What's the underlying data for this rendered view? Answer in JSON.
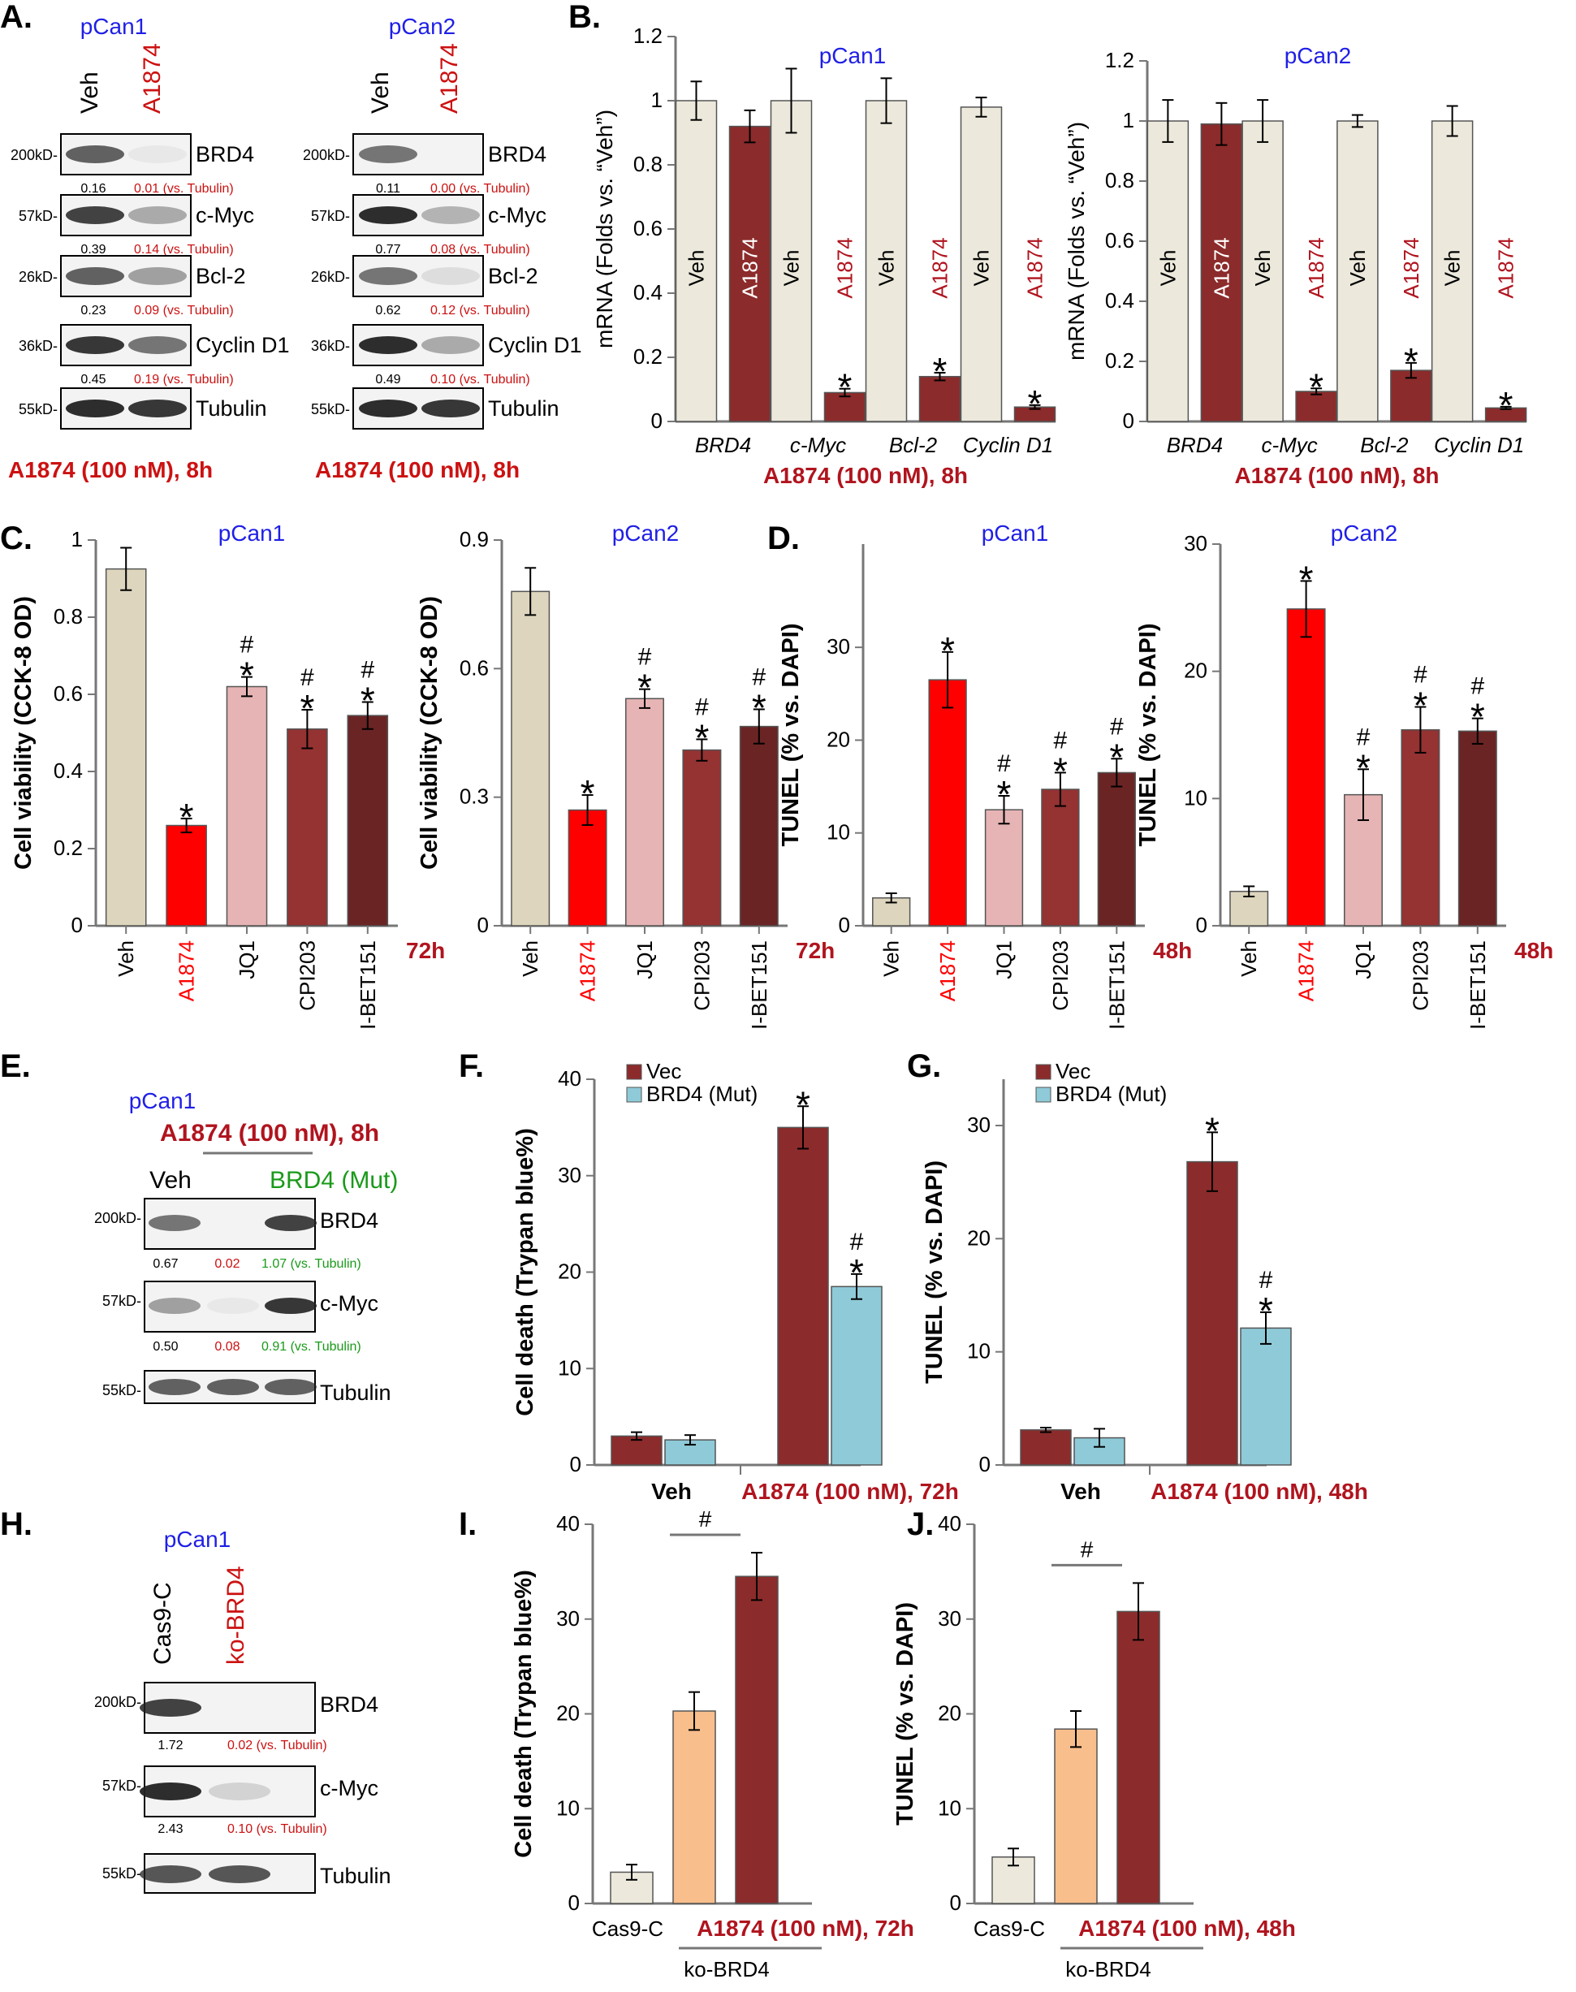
{
  "colors": {
    "blue": "#1f1fe6",
    "red": "#cc1111",
    "darkred": "#b0141e",
    "green": "#1a9a1a",
    "veh": "#ddd5bd",
    "pale": "#ece9dc",
    "bright": "#ff0000",
    "pink": "#e6b4b4",
    "brown": "#953232",
    "darkbrown": "#6b2424",
    "navy": "#8c2b2b",
    "lightblue": "#8fcad8",
    "peach": "#f8be8c"
  },
  "panels": {
    "A": {
      "letter": "A.",
      "blots": [
        {
          "title": "pCan1",
          "lanes": [
            "Veh",
            "A1874"
          ],
          "rows": [
            {
              "protein": "BRD4",
              "mw": "200kD-",
              "q": [
                "0.16",
                "0.01 (vs. Tubulin)"
              ]
            },
            {
              "protein": "c-Myc",
              "mw": "57kD-",
              "q": [
                "0.39",
                "0.14 (vs. Tubulin)"
              ]
            },
            {
              "protein": "Bcl-2",
              "mw": "26kD-",
              "q": [
                "0.23",
                "0.09 (vs. Tubulin)"
              ]
            },
            {
              "protein": "Cyclin D1",
              "mw": "36kD-",
              "q": [
                "0.45",
                "0.19 (vs. Tubulin)"
              ]
            },
            {
              "protein": "Tubulin",
              "mw": "55kD-",
              "q": []
            }
          ],
          "footer": "A1874 (100 nM), 8h"
        },
        {
          "title": "pCan2",
          "lanes": [
            "Veh",
            "A1874"
          ],
          "rows": [
            {
              "protein": "BRD4",
              "mw": "200kD-",
              "q": [
                "0.11",
                "0.00 (vs. Tubulin)"
              ]
            },
            {
              "protein": "c-Myc",
              "mw": "57kD-",
              "q": [
                "0.77",
                "0.08 (vs. Tubulin)"
              ]
            },
            {
              "protein": "Bcl-2",
              "mw": "26kD-",
              "q": [
                "0.62",
                "0.12 (vs. Tubulin)"
              ]
            },
            {
              "protein": "Cyclin D1",
              "mw": "36kD-",
              "q": [
                "0.49",
                "0.10 (vs. Tubulin)"
              ]
            },
            {
              "protein": "Tubulin",
              "mw": "55kD-",
              "q": []
            }
          ],
          "footer": "A1874 (100 nM), 8h"
        }
      ]
    },
    "E": {
      "letter": "E.",
      "title": "pCan1",
      "treatment": "A1874 (100 nM), 8h",
      "lanes": [
        "Veh",
        "BRD4 (Mut)"
      ],
      "rows": [
        {
          "protein": "BRD4",
          "mw": "200kD-",
          "q": [
            "0.67",
            "0.02",
            "1.07 (vs. Tubulin)"
          ]
        },
        {
          "protein": "c-Myc",
          "mw": "57kD-",
          "q": [
            "0.50",
            "0.08",
            "0.91 (vs. Tubulin)"
          ]
        },
        {
          "protein": "Tubulin",
          "mw": "55kD-",
          "q": []
        }
      ]
    },
    "H": {
      "letter": "H.",
      "title": "pCan1",
      "lanes": [
        "Cas9-C",
        "ko-BRD4"
      ],
      "rows": [
        {
          "protein": "BRD4",
          "mw": "200kD-",
          "q": [
            "1.72",
            "0.02 (vs. Tubulin)"
          ]
        },
        {
          "protein": "c-Myc",
          "mw": "57kD-",
          "q": [
            "2.43",
            "0.10 (vs. Tubulin)"
          ]
        },
        {
          "protein": "Tubulin",
          "mw": "55kD-",
          "q": []
        }
      ]
    }
  },
  "chart_data": [
    {
      "panel": "B",
      "letter": "B.",
      "type": "bar",
      "title": "pCan1",
      "ylabel": "mRNA (Folds vs. “Veh”)",
      "ylim": [
        0,
        1.2
      ],
      "yticks": [
        "0",
        "0.2",
        "0.4",
        "0.6",
        "0.8",
        "1",
        "1.2"
      ],
      "categories": [
        "BRD4",
        "c-Myc",
        "Bcl-2",
        "Cyclin D1"
      ],
      "xlabel": "A1874 (100 nM), 8h",
      "series": [
        {
          "name": "Veh",
          "values": [
            1.0,
            1.0,
            1.0,
            0.98
          ],
          "err": [
            0.06,
            0.1,
            0.07,
            0.03
          ]
        },
        {
          "name": "A1874",
          "values": [
            0.92,
            0.09,
            0.14,
            0.045
          ],
          "err": [
            0.05,
            0.012,
            0.012,
            0.006
          ]
        }
      ],
      "marks": [
        "",
        "*",
        "*",
        "*"
      ]
    },
    {
      "panel": "B2",
      "letter": "",
      "type": "bar",
      "title": "pCan2",
      "ylabel": "mRNA (Folds vs. “Veh”)",
      "ylim": [
        0,
        1.2
      ],
      "yticks": [
        "0",
        "0.2",
        "0.4",
        "0.6",
        "0.8",
        "1",
        "1.2"
      ],
      "categories": [
        "BRD4",
        "c-Myc",
        "Bcl-2",
        "Cyclin D1"
      ],
      "xlabel": "A1874 (100 nM), 8h",
      "series": [
        {
          "name": "Veh",
          "values": [
            1.0,
            1.0,
            1.0,
            1.0
          ],
          "err": [
            0.07,
            0.07,
            0.02,
            0.05
          ]
        },
        {
          "name": "A1874",
          "values": [
            0.99,
            0.1,
            0.17,
            0.045
          ],
          "err": [
            0.07,
            0.01,
            0.025,
            0.004
          ]
        }
      ],
      "marks": [
        "",
        "*",
        "*",
        "*"
      ]
    },
    {
      "panel": "C",
      "letter": "C.",
      "type": "bar",
      "title": "pCan1",
      "ylabel": "Cell viability (CCK-8 OD)",
      "ylim": [
        0,
        1.0
      ],
      "yticks": [
        "0",
        "0.2",
        "0.4",
        "0.6",
        "0.8",
        "1"
      ],
      "categories": [
        "Veh",
        "A1874",
        "JQ1",
        "CPI203",
        "I-BET151"
      ],
      "time": "72h",
      "values": [
        0.925,
        0.26,
        0.62,
        0.51,
        0.545
      ],
      "err": [
        0.055,
        0.018,
        0.025,
        0.05,
        0.035
      ],
      "marks": [
        "",
        "*",
        "*#",
        "*#",
        "*#"
      ]
    },
    {
      "panel": "C2",
      "letter": "",
      "type": "bar",
      "title": "pCan2",
      "ylabel": "Cell viability (CCK-8 OD)",
      "ylim": [
        0,
        0.9
      ],
      "yticks": [
        "0",
        "0.3",
        "0.6",
        "0.9"
      ],
      "categories": [
        "Veh",
        "A1874",
        "JQ1",
        "CPI203",
        "I-BET151"
      ],
      "time": "72h",
      "values": [
        0.78,
        0.27,
        0.53,
        0.41,
        0.465
      ],
      "err": [
        0.055,
        0.035,
        0.022,
        0.025,
        0.04
      ],
      "marks": [
        "",
        "*",
        "*#",
        "*#",
        "*#"
      ]
    },
    {
      "panel": "D",
      "letter": "D.",
      "type": "bar",
      "title": "pCan1",
      "ylabel": "TUNEL (% vs. DAPI)",
      "ylim": [
        0,
        35
      ],
      "yticks": [
        "0",
        "10",
        "20",
        "30"
      ],
      "categories": [
        "Veh",
        "A1874",
        "JQ1",
        "CPI203",
        "I-BET151"
      ],
      "time": "48h",
      "values": [
        3.0,
        26.5,
        12.5,
        14.7,
        16.5
      ],
      "err": [
        0.5,
        3.0,
        1.5,
        1.8,
        1.5
      ],
      "marks": [
        "",
        "*",
        "*#",
        "*#",
        "*#"
      ]
    },
    {
      "panel": "D2",
      "letter": "",
      "type": "bar",
      "title": "pCan2",
      "ylabel": "TUNEL (% vs. DAPI)",
      "ylim": [
        0,
        30
      ],
      "yticks": [
        "0",
        "10",
        "20",
        "30"
      ],
      "categories": [
        "Veh",
        "A1874",
        "JQ1",
        "CPI203",
        "I-BET151"
      ],
      "time": "48h",
      "values": [
        2.7,
        24.9,
        10.3,
        15.4,
        15.3
      ],
      "err": [
        0.4,
        2.2,
        2.0,
        1.8,
        1.0
      ],
      "marks": [
        "",
        "*",
        "*#",
        "*#",
        "*#"
      ]
    },
    {
      "panel": "F",
      "letter": "F.",
      "type": "bar",
      "ylabel": "Cell death (Trypan blue%)",
      "ylim": [
        0,
        40
      ],
      "yticks": [
        "0",
        "10",
        "20",
        "30",
        "40"
      ],
      "categories": [
        "Veh",
        "A1874 (100 nM), 72h"
      ],
      "legend": [
        "Vec",
        "BRD4 (Mut)"
      ],
      "series": [
        {
          "name": "Vec",
          "values": [
            3.0,
            35.0
          ],
          "err": [
            0.4,
            2.2
          ]
        },
        {
          "name": "BRD4 (Mut)",
          "values": [
            2.6,
            18.5
          ],
          "err": [
            0.5,
            1.3
          ]
        }
      ],
      "marks": [
        [
          "",
          ""
        ],
        [
          "*",
          "*#"
        ]
      ]
    },
    {
      "panel": "G",
      "letter": "G.",
      "type": "bar",
      "ylabel": "TUNEL (% vs. DAPI)",
      "ylim": [
        0,
        30
      ],
      "yticks": [
        "0",
        "10",
        "20",
        "30"
      ],
      "categories": [
        "Veh",
        "A1874 (100 nM), 48h"
      ],
      "legend": [
        "Vec",
        "BRD4 (Mut)"
      ],
      "series": [
        {
          "name": "Vec",
          "values": [
            3.1,
            26.8
          ],
          "err": [
            0.2,
            2.6
          ]
        },
        {
          "name": "BRD4 (Mut)",
          "values": [
            2.4,
            12.1
          ],
          "err": [
            0.8,
            1.4
          ]
        }
      ],
      "marks": [
        [
          "",
          ""
        ],
        [
          "*",
          "*#"
        ]
      ]
    },
    {
      "panel": "I",
      "letter": "I.",
      "type": "bar",
      "ylabel": "Cell death (Trypan blue%)",
      "ylim": [
        0,
        40
      ],
      "yticks": [
        "0",
        "10",
        "20",
        "30",
        "40"
      ],
      "bars": [
        "Cas9-C",
        "ko-BRD4",
        "ko-BRD4 + A1874"
      ],
      "values": [
        3.3,
        20.3,
        34.5
      ],
      "err": [
        0.8,
        2.0,
        2.5
      ],
      "labels": {
        "left": "Cas9-C",
        "treat": "A1874 (100 nM), 72h",
        "group": "ko-BRD4",
        "sig": "#"
      }
    },
    {
      "panel": "J",
      "letter": "J.",
      "type": "bar",
      "ylabel": "TUNEL (% vs. DAPI)",
      "ylim": [
        0,
        40
      ],
      "yticks": [
        "0",
        "10",
        "20",
        "30",
        "40"
      ],
      "bars": [
        "Cas9-C",
        "ko-BRD4",
        "ko-BRD4 + A1874"
      ],
      "values": [
        4.9,
        18.4,
        30.8
      ],
      "err": [
        0.9,
        1.9,
        3.0
      ],
      "labels": {
        "left": "Cas9-C",
        "treat": "A1874 (100 nM), 48h",
        "group": "ko-BRD4",
        "sig": "#"
      }
    }
  ]
}
